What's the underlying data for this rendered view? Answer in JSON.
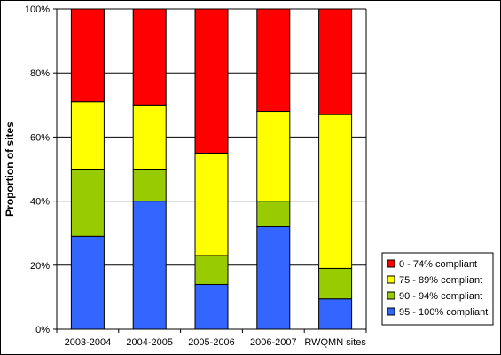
{
  "chart_data": {
    "type": "bar",
    "stacked": true,
    "percent_stacked": true,
    "categories": [
      "2003-2004",
      "2004-2005",
      "2005-2006",
      "2006-2007",
      "RWQMN sites"
    ],
    "series": [
      {
        "name": "95 - 100% compliant",
        "color": "#3366ff",
        "values": [
          29,
          40,
          14,
          32,
          9.5
        ]
      },
      {
        "name": "90 - 94% compliant",
        "color": "#99cc00",
        "values": [
          21,
          10,
          9,
          8,
          9.5
        ]
      },
      {
        "name": "75 - 89% compliant",
        "color": "#ffff00",
        "values": [
          21,
          20,
          32,
          28,
          48
        ]
      },
      {
        "name": "0 - 74% compliant",
        "color": "#ff0000",
        "values": [
          29,
          30,
          45,
          32,
          33
        ]
      }
    ],
    "legend_order": [
      "0 - 74% compliant",
      "75 - 89% compliant",
      "90 - 94% compliant",
      "95 - 100% compliant"
    ],
    "ylabel": "Proportion of sites",
    "xlabel": "",
    "ylim": [
      0,
      100
    ],
    "yticks": [
      "0%",
      "20%",
      "40%",
      "60%",
      "80%",
      "100%"
    ],
    "grid": true,
    "legend_position": "bottom-right"
  }
}
